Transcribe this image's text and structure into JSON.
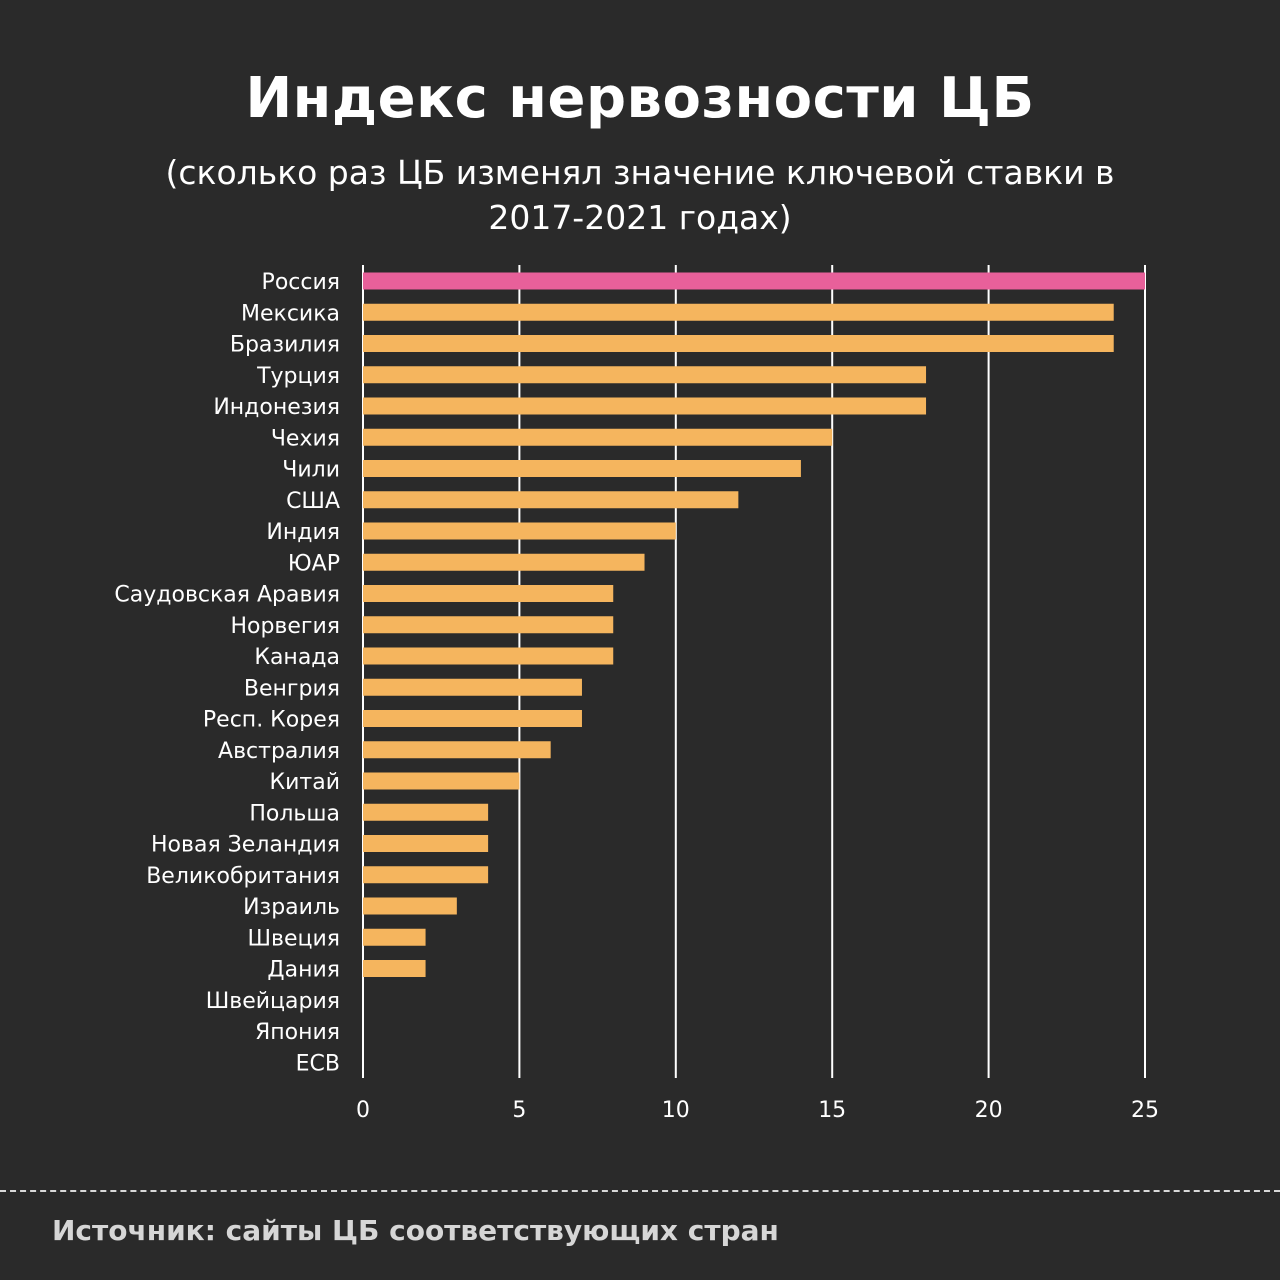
{
  "title": "Индекс нервозности ЦБ",
  "subtitle": "(сколько раз ЦБ изменял значение ключевой ставки в 2017-2021 годах)",
  "source": "Источник: сайты ЦБ соответствующих стран",
  "colors": {
    "background": "#2a2a2a",
    "highlight": "#e8609a",
    "bar": "#f5b55e",
    "grid": "#ffffff",
    "text": "#ffffff"
  },
  "chart_data": {
    "type": "bar",
    "orientation": "horizontal",
    "title": "Индекс нервозности ЦБ",
    "xlabel": "",
    "ylabel": "",
    "xlim": [
      0,
      25
    ],
    "xticks": [
      "0",
      "5",
      "10",
      "15",
      "20",
      "25"
    ],
    "grid": true,
    "highlight_category": "Россия",
    "categories": [
      "Россия",
      "Мексика",
      "Бразилия",
      "Турция",
      "Индонезия",
      "Чехия",
      "Чили",
      "США",
      "Индия",
      "ЮАР",
      "Саудовская Аравия",
      "Норвегия",
      "Канада",
      "Венгрия",
      "Респ. Корея",
      "Австралия",
      "Китай",
      "Польша",
      "Новая Зеландия",
      "Великобритания",
      "Израиль",
      "Швеция",
      "Дания",
      "Швейцария",
      "Япония",
      "ECB"
    ],
    "values": [
      25,
      24,
      24,
      18,
      18,
      15,
      14,
      12,
      10,
      9,
      8,
      8,
      8,
      7,
      7,
      6,
      5,
      4,
      4,
      4,
      3,
      2,
      2,
      0,
      0,
      0
    ]
  }
}
